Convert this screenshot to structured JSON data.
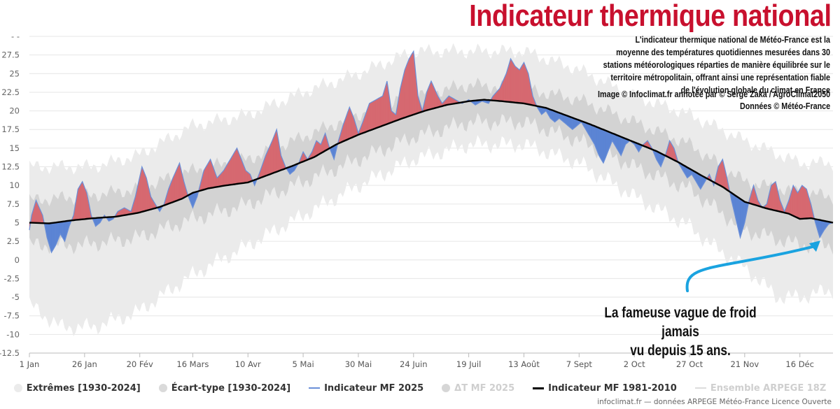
{
  "header": {
    "title": "Indicateur thermique national",
    "description": "L'indicateur thermique national de Météo-France est la moyenne des températures quotidiennes mesurées dans 30 stations météorologiques réparties de manière équilibrée sur le territoire métropolitain, offrant ainsi une représentation fiable de l'évolution globale du climat en France",
    "credit_image": "Image © Infoclimat.fr annotée par © Serge Zaka / AgroClimat2050",
    "credit_data": "Données © Météo-France"
  },
  "annotation": {
    "line1": "La fameuse vague de froid jamais",
    "line2": "vu depuis 15 ans."
  },
  "legend": [
    {
      "label": "Extrêmes [1930-2024]",
      "color": "#ebebeb",
      "kind": "dot",
      "dim": false
    },
    {
      "label": "Écart-type [1930-2024]",
      "color": "#dadada",
      "kind": "dot",
      "dim": false
    },
    {
      "label": "Indicateur MF 2025",
      "color": "#6a8fd8",
      "kind": "line",
      "dim": false
    },
    {
      "label": "ΔT MF 2025",
      "color": "#d6d6d6",
      "kind": "dot-small",
      "dim": true
    },
    {
      "label": "Indicateur MF 1981-2010",
      "color": "#000000",
      "kind": "line-thick",
      "dim": false
    },
    {
      "label": "Ensemble ARPEGE 18Z",
      "color": "#dcdcdc",
      "kind": "line",
      "dim": true
    }
  ],
  "footer": "infoclimat.fr — données ARPEGE Météo-France Licence Ouverte",
  "colors": {
    "above_normal": "#d66870",
    "below_normal": "#5b84d4",
    "line_2025": "#6a8fd8",
    "normal_line": "#000000",
    "extremes_band": "#ebebeb",
    "stddev_band": "#d3d3d3",
    "annotation_arrow": "#1aa3e0",
    "title_red": "#c8102e"
  },
  "chart_data": {
    "type": "area",
    "xlabel": "",
    "ylabel": "",
    "ylim": [
      -12.5,
      30
    ],
    "y_ticks": [
      "- -",
      "27.5",
      "25",
      "22.5",
      "20",
      "17.5",
      "15",
      "12.5",
      "10",
      "7.5",
      "5",
      "2.5",
      "0",
      "-2.5",
      "-5",
      "-7.5",
      "-10",
      "-12.5"
    ],
    "x_ticks": [
      {
        "label": "1 Jan",
        "day": 1
      },
      {
        "label": "26 Jan",
        "day": 26
      },
      {
        "label": "20 Fév",
        "day": 51
      },
      {
        "label": "16 Mars",
        "day": 75
      },
      {
        "label": "10 Avr",
        "day": 100
      },
      {
        "label": "5 Mai",
        "day": 125
      },
      {
        "label": "30 Mai",
        "day": 150
      },
      {
        "label": "24 Juin",
        "day": 175
      },
      {
        "label": "19 Juil",
        "day": 200
      },
      {
        "label": "13 Août",
        "day": 225
      },
      {
        "label": "7 Sept",
        "day": 250
      },
      {
        "label": "2 Oct",
        "day": 275
      },
      {
        "label": "27 Oct",
        "day": 300
      },
      {
        "label": "21 Nov",
        "day": 325
      },
      {
        "label": "16 Déc",
        "day": 350
      }
    ],
    "x_range_days": [
      1,
      365
    ],
    "grid": true,
    "legend_position": "bottom",
    "series": [
      {
        "name": "Indicateur MF 1981-2010",
        "points": [
          [
            1,
            5.0
          ],
          [
            10,
            4.9
          ],
          [
            20,
            5.3
          ],
          [
            30,
            5.6
          ],
          [
            40,
            5.8
          ],
          [
            50,
            6.3
          ],
          [
            60,
            7.1
          ],
          [
            70,
            8.2
          ],
          [
            75,
            9.0
          ],
          [
            82,
            9.6
          ],
          [
            90,
            10.0
          ],
          [
            100,
            10.4
          ],
          [
            110,
            11.5
          ],
          [
            120,
            12.6
          ],
          [
            130,
            13.8
          ],
          [
            140,
            15.5
          ],
          [
            150,
            16.8
          ],
          [
            160,
            17.9
          ],
          [
            170,
            19.0
          ],
          [
            180,
            20.0
          ],
          [
            190,
            20.8
          ],
          [
            200,
            21.3
          ],
          [
            207,
            21.5
          ],
          [
            215,
            21.3
          ],
          [
            225,
            21.0
          ],
          [
            235,
            20.4
          ],
          [
            245,
            19.3
          ],
          [
            255,
            18.2
          ],
          [
            265,
            17.0
          ],
          [
            275,
            15.8
          ],
          [
            285,
            14.6
          ],
          [
            295,
            13.1
          ],
          [
            305,
            11.4
          ],
          [
            315,
            9.8
          ],
          [
            325,
            7.8
          ],
          [
            335,
            6.9
          ],
          [
            345,
            6.2
          ],
          [
            350,
            5.5
          ],
          [
            355,
            5.6
          ],
          [
            360,
            5.3
          ],
          [
            365,
            5.0
          ]
        ]
      },
      {
        "name": "Indicateur MF 2025",
        "points": [
          [
            1,
            4.0
          ],
          [
            2,
            6.0
          ],
          [
            4,
            8.0
          ],
          [
            7,
            6.0
          ],
          [
            9,
            3.0
          ],
          [
            11,
            1.0
          ],
          [
            13,
            2.0
          ],
          [
            15,
            3.5
          ],
          [
            17,
            2.5
          ],
          [
            19,
            4.5
          ],
          [
            21,
            6.0
          ],
          [
            23,
            9.5
          ],
          [
            25,
            10.5
          ],
          [
            27,
            9.0
          ],
          [
            29,
            6.0
          ],
          [
            31,
            4.5
          ],
          [
            33,
            5.0
          ],
          [
            35,
            6.0
          ],
          [
            37,
            5.2
          ],
          [
            39,
            5.5
          ],
          [
            41,
            6.5
          ],
          [
            44,
            7.0
          ],
          [
            47,
            6.5
          ],
          [
            49,
            8.5
          ],
          [
            52,
            12.5
          ],
          [
            54,
            11.0
          ],
          [
            56,
            8.5
          ],
          [
            58,
            7.5
          ],
          [
            60,
            6.5
          ],
          [
            62,
            7.5
          ],
          [
            64,
            9.5
          ],
          [
            66,
            11.0
          ],
          [
            69,
            13.0
          ],
          [
            71,
            10.5
          ],
          [
            73,
            8.5
          ],
          [
            75,
            7.0
          ],
          [
            77,
            8.5
          ],
          [
            80,
            12.0
          ],
          [
            83,
            13.5
          ],
          [
            86,
            11.0
          ],
          [
            89,
            12.0
          ],
          [
            92,
            13.5
          ],
          [
            95,
            15.0
          ],
          [
            97,
            13.5
          ],
          [
            99,
            12.0
          ],
          [
            101,
            11.5
          ],
          [
            103,
            10.0
          ],
          [
            105,
            11.5
          ],
          [
            108,
            14.0
          ],
          [
            111,
            16.0
          ],
          [
            113,
            17.5
          ],
          [
            115,
            14.0
          ],
          [
            117,
            12.5
          ],
          [
            119,
            11.5
          ],
          [
            121,
            12.0
          ],
          [
            123,
            13.0
          ],
          [
            125,
            14.5
          ],
          [
            127,
            13.5
          ],
          [
            129,
            14.5
          ],
          [
            131,
            16.0
          ],
          [
            133,
            15.5
          ],
          [
            135,
            17.0
          ],
          [
            137,
            15.0
          ],
          [
            139,
            13.5
          ],
          [
            141,
            16.0
          ],
          [
            143,
            18.0
          ],
          [
            146,
            20.5
          ],
          [
            148,
            19.0
          ],
          [
            150,
            17.0
          ],
          [
            152,
            18.5
          ],
          [
            155,
            21.0
          ],
          [
            158,
            21.5
          ],
          [
            161,
            22.0
          ],
          [
            163,
            24.0
          ],
          [
            165,
            20.0
          ],
          [
            167,
            19.5
          ],
          [
            169,
            23.0
          ],
          [
            171,
            25.5
          ],
          [
            173,
            27.0
          ],
          [
            175,
            28.0
          ],
          [
            177,
            22.0
          ],
          [
            179,
            20.0
          ],
          [
            181,
            22.5
          ],
          [
            183,
            24.0
          ],
          [
            186,
            22.0
          ],
          [
            188,
            21.0
          ],
          [
            191,
            22.0
          ],
          [
            194,
            21.5
          ],
          [
            197,
            21.0
          ],
          [
            200,
            21.5
          ],
          [
            203,
            20.8
          ],
          [
            206,
            21.3
          ],
          [
            209,
            21.0
          ],
          [
            211,
            22.0
          ],
          [
            214,
            23.0
          ],
          [
            217,
            25.0
          ],
          [
            219,
            27.0
          ],
          [
            221,
            26.0
          ],
          [
            223,
            25.5
          ],
          [
            225,
            26.5
          ],
          [
            227,
            25.0
          ],
          [
            229,
            22.0
          ],
          [
            231,
            20.5
          ],
          [
            233,
            19.5
          ],
          [
            235,
            20.0
          ],
          [
            237,
            19.0
          ],
          [
            239,
            18.5
          ],
          [
            241,
            19.0
          ],
          [
            243,
            18.5
          ],
          [
            245,
            18.0
          ],
          [
            247,
            17.5
          ],
          [
            249,
            18.0
          ],
          [
            251,
            18.5
          ],
          [
            253,
            17.5
          ],
          [
            255,
            16.5
          ],
          [
            257,
            15.5
          ],
          [
            259,
            14.0
          ],
          [
            261,
            13.0
          ],
          [
            263,
            14.5
          ],
          [
            265,
            16.0
          ],
          [
            267,
            15.0
          ],
          [
            269,
            14.0
          ],
          [
            271,
            15.5
          ],
          [
            273,
            16.0
          ],
          [
            275,
            15.5
          ],
          [
            277,
            14.5
          ],
          [
            279,
            15.5
          ],
          [
            281,
            16.0
          ],
          [
            283,
            15.0
          ],
          [
            285,
            13.5
          ],
          [
            287,
            12.5
          ],
          [
            289,
            14.0
          ],
          [
            291,
            16.0
          ],
          [
            293,
            15.0
          ],
          [
            295,
            13.0
          ],
          [
            297,
            12.0
          ],
          [
            299,
            11.0
          ],
          [
            301,
            11.5
          ],
          [
            303,
            10.5
          ],
          [
            305,
            9.5
          ],
          [
            307,
            10.5
          ],
          [
            309,
            11.5
          ],
          [
            311,
            10.0
          ],
          [
            313,
            12.5
          ],
          [
            315,
            13.5
          ],
          [
            317,
            11.0
          ],
          [
            319,
            8.0
          ],
          [
            321,
            5.5
          ],
          [
            323,
            3.0
          ],
          [
            325,
            5.0
          ],
          [
            327,
            8.0
          ],
          [
            329,
            10.0
          ],
          [
            331,
            8.0
          ],
          [
            333,
            7.0
          ],
          [
            335,
            7.5
          ],
          [
            337,
            10.0
          ],
          [
            339,
            10.5
          ],
          [
            341,
            8.0
          ],
          [
            343,
            6.5
          ],
          [
            345,
            8.0
          ],
          [
            347,
            10.0
          ],
          [
            349,
            9.0
          ],
          [
            351,
            10.0
          ],
          [
            353,
            9.5
          ],
          [
            355,
            7.5
          ],
          [
            357,
            5.0
          ],
          [
            359,
            3.0
          ],
          [
            361,
            4.0
          ],
          [
            363,
            4.8
          ],
          [
            365,
            5.0
          ]
        ]
      }
    ],
    "bands": [
      {
        "name": "Extrêmes [1930-2024]",
        "upper": [
          [
            1,
            12.5
          ],
          [
            15,
            12.5
          ],
          [
            30,
            12.5
          ],
          [
            50,
            14.0
          ],
          [
            75,
            18.0
          ],
          [
            100,
            19.5
          ],
          [
            125,
            22.5
          ],
          [
            150,
            25.0
          ],
          [
            175,
            28.0
          ],
          [
            200,
            28.0
          ],
          [
            225,
            28.0
          ],
          [
            250,
            25.5
          ],
          [
            275,
            22.0
          ],
          [
            300,
            19.5
          ],
          [
            325,
            16.0
          ],
          [
            350,
            13.0
          ],
          [
            365,
            13.0
          ]
        ],
        "lower": [
          [
            1,
            -6.0
          ],
          [
            15,
            -9.0
          ],
          [
            30,
            -9.0
          ],
          [
            40,
            -8.0
          ],
          [
            50,
            -7.0
          ],
          [
            75,
            -2.0
          ],
          [
            100,
            2.0
          ],
          [
            125,
            6.0
          ],
          [
            150,
            10.0
          ],
          [
            175,
            13.5
          ],
          [
            200,
            15.5
          ],
          [
            225,
            15.5
          ],
          [
            250,
            13.0
          ],
          [
            275,
            8.5
          ],
          [
            300,
            4.5
          ],
          [
            310,
            2.0
          ],
          [
            325,
            -1.0
          ],
          [
            340,
            -5.0
          ],
          [
            350,
            -5.0
          ],
          [
            365,
            -4.0
          ]
        ]
      },
      {
        "name": "Écart-type [1930-2024]",
        "upper": [
          [
            1,
            8.0
          ],
          [
            25,
            8.5
          ],
          [
            50,
            9.5
          ],
          [
            75,
            12.0
          ],
          [
            100,
            13.5
          ],
          [
            125,
            16.5
          ],
          [
            150,
            19.5
          ],
          [
            175,
            22.0
          ],
          [
            200,
            23.5
          ],
          [
            225,
            23.0
          ],
          [
            250,
            21.5
          ],
          [
            275,
            18.5
          ],
          [
            300,
            15.5
          ],
          [
            325,
            10.5
          ],
          [
            350,
            9.0
          ],
          [
            365,
            8.5
          ]
        ],
        "lower": [
          [
            1,
            2.0
          ],
          [
            25,
            2.0
          ],
          [
            50,
            3.0
          ],
          [
            75,
            5.5
          ],
          [
            100,
            7.5
          ],
          [
            125,
            10.5
          ],
          [
            150,
            13.5
          ],
          [
            175,
            16.5
          ],
          [
            200,
            18.5
          ],
          [
            225,
            18.5
          ],
          [
            250,
            16.0
          ],
          [
            275,
            12.5
          ],
          [
            300,
            9.5
          ],
          [
            325,
            4.0
          ],
          [
            350,
            2.0
          ],
          [
            365,
            2.0
          ]
        ]
      }
    ]
  }
}
